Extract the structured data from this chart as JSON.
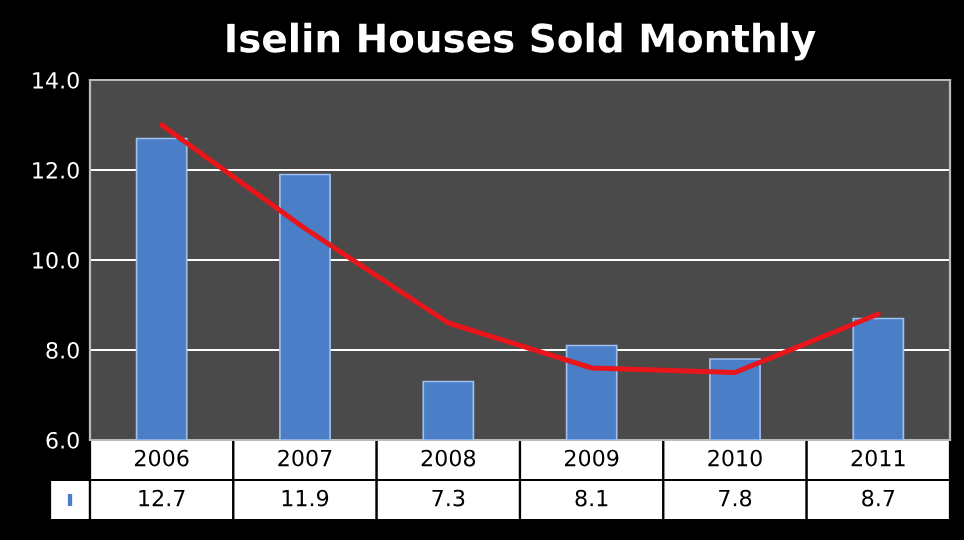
{
  "chart_data": {
    "type": "bar",
    "title": "Iselin Houses Sold Monthly",
    "categories": [
      "2006",
      "2007",
      "2008",
      "2009",
      "2010",
      "2011"
    ],
    "series": [
      {
        "color": "#4a7fc8",
        "values": [
          12.7,
          11.9,
          7.3,
          8.1,
          7.8,
          8.7
        ],
        "value_labels": [
          "12.7",
          "11.9",
          "7.3",
          "8.1",
          "7.8",
          "8.7"
        ]
      },
      {
        "type": "line",
        "color": "#e8151b",
        "values": [
          13.0,
          10.7,
          8.6,
          7.6,
          7.5,
          8.8
        ]
      }
    ],
    "ylim": [
      6,
      14
    ],
    "yticks": [
      {
        "value": 6,
        "label": "6.0"
      },
      {
        "value": 8,
        "label": "8.0"
      },
      {
        "value": 10,
        "label": "10.0"
      },
      {
        "value": 12,
        "label": "12.0"
      },
      {
        "value": 14,
        "label": "14.0"
      }
    ],
    "grid": "y"
  }
}
